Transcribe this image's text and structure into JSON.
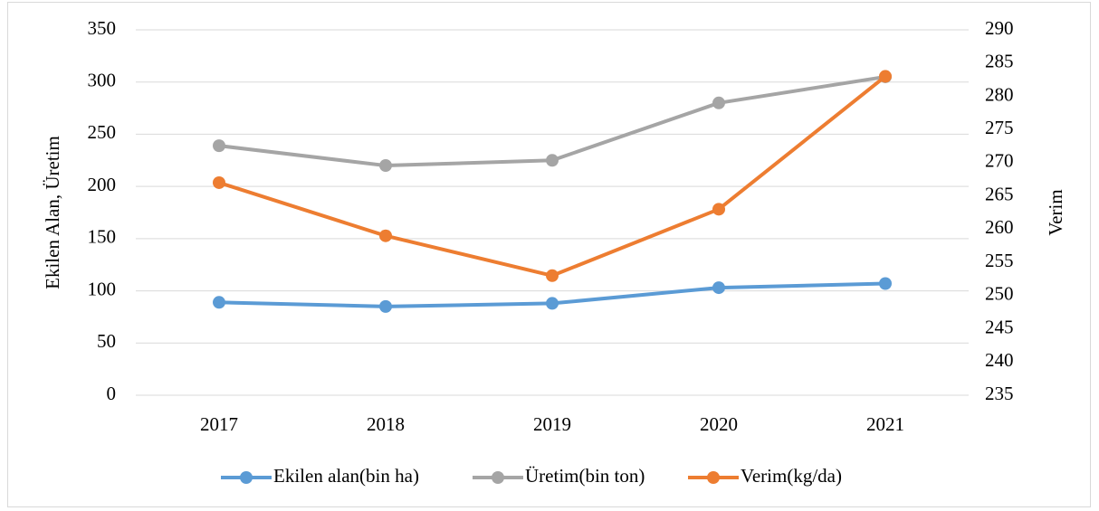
{
  "chart_data": {
    "type": "line",
    "y_label": "Ekilen Alan, Üretim",
    "y2_label": "Verim",
    "categories": [
      "2017",
      "2018",
      "2019",
      "2020",
      "2021"
    ],
    "series": [
      {
        "name": "Ekilen alan(bin ha)",
        "color": "#5b9bd5",
        "values": [
          89,
          85,
          88,
          103,
          107
        ]
      },
      {
        "name": "Üretim(bin ton)",
        "color": "#a5a5a5",
        "values": [
          239,
          220,
          225,
          280,
          305
        ]
      },
      {
        "name": "Verim(kg/da)",
        "color": "#ed7d31",
        "axis": "y2",
        "values": [
          267,
          259,
          253,
          263,
          283
        ]
      }
    ],
    "ylim": [
      0,
      350
    ],
    "yticks": [
      0,
      50,
      100,
      150,
      200,
      250,
      300,
      350
    ],
    "y2lim": [
      235,
      290
    ],
    "y2ticks": [
      235,
      240,
      245,
      250,
      255,
      260,
      265,
      270,
      275,
      280,
      285,
      290
    ],
    "grid": true,
    "legend": "bottom"
  }
}
